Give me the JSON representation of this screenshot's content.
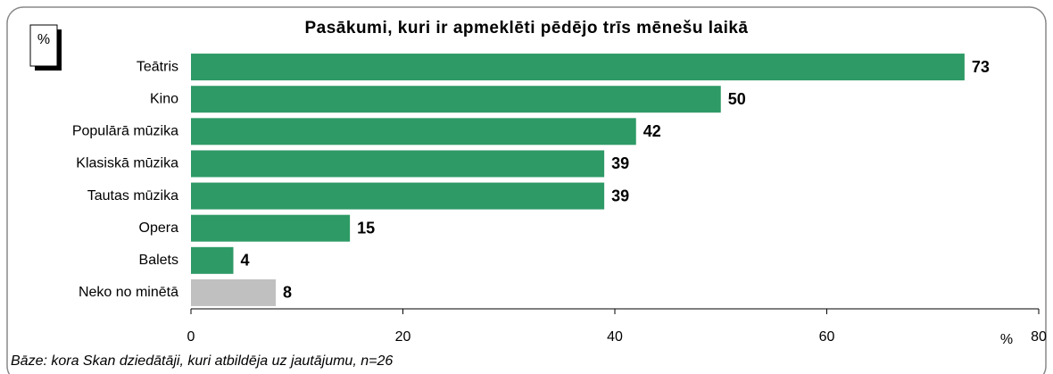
{
  "chart_data": {
    "type": "barh",
    "title": "Pasākumi, kuri ir apmeklēti pēdējo trīs mēnešu laikā",
    "unit_label": "%",
    "xlabel": "%",
    "note": "Bāze: kora Skan dziedātāji, kuri atbildēja uz jautājumu, n=26",
    "categories": [
      "Teātris",
      "Kino",
      "Populārā mūzika",
      "Klasiskā mūzika",
      "Tautas mūzika",
      "Opera",
      "Balets",
      "Neko no minētā"
    ],
    "values": [
      73,
      50,
      42,
      39,
      39,
      15,
      4,
      8
    ],
    "colors": [
      "#2e9a66",
      "#2e9a66",
      "#2e9a66",
      "#2e9a66",
      "#2e9a66",
      "#2e9a66",
      "#2e9a66",
      "#c0c0c0"
    ],
    "xlim": [
      0,
      80
    ],
    "xticks": [
      0,
      20,
      40,
      60,
      80
    ]
  }
}
